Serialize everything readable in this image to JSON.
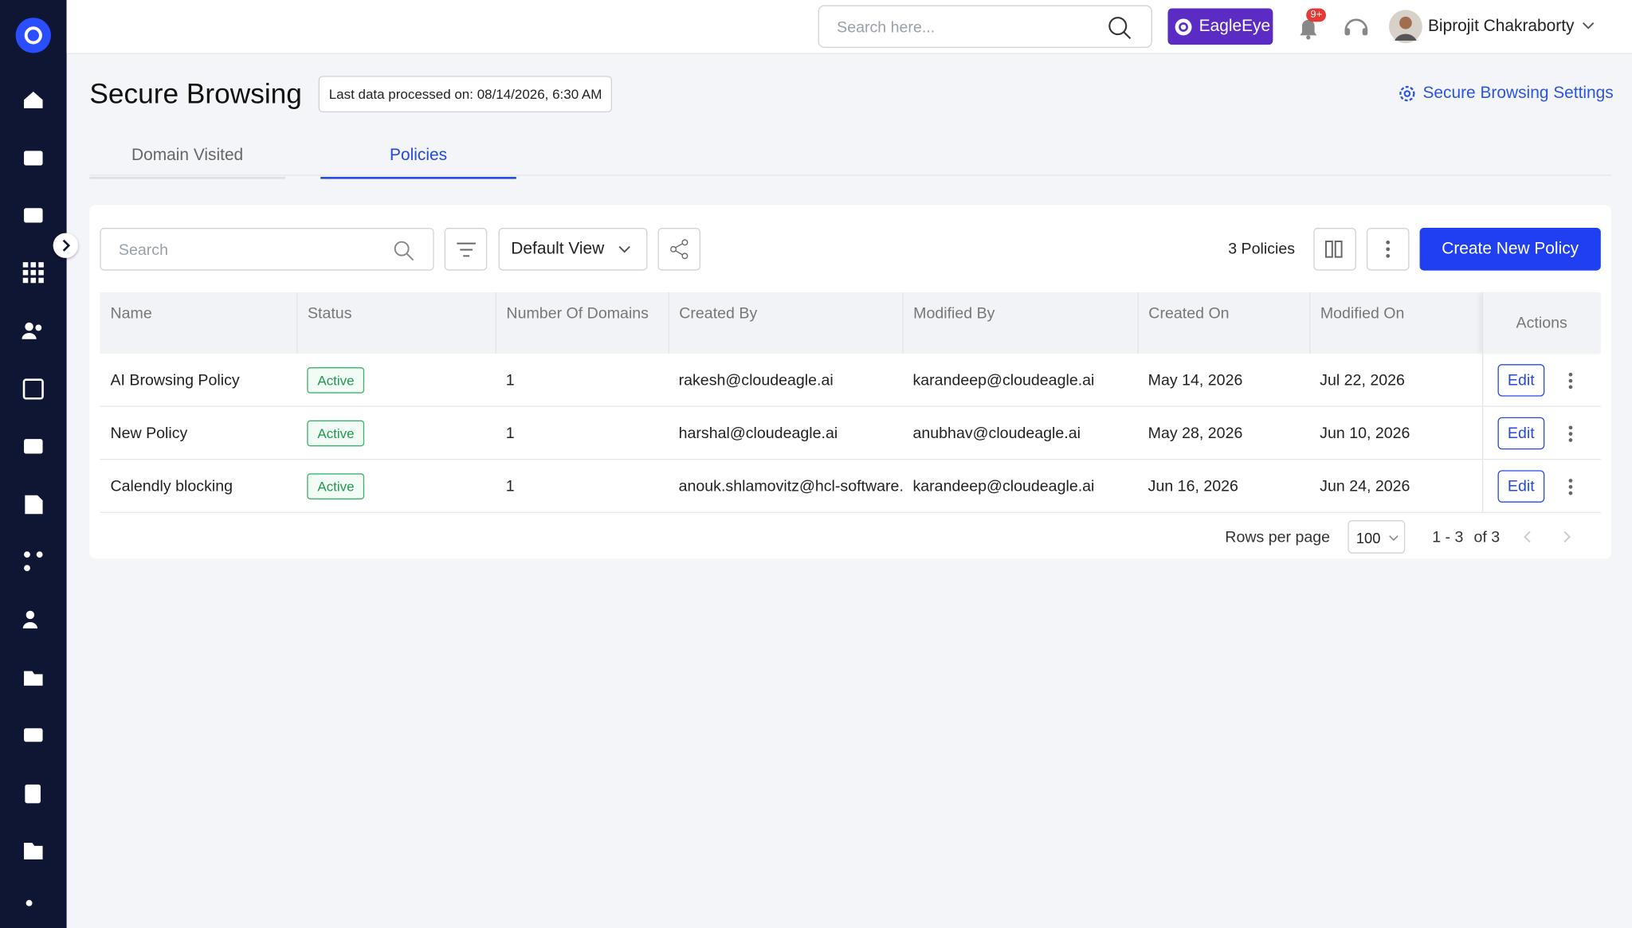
{
  "header": {
    "search_placeholder": "Search here...",
    "brand": "EagleEye",
    "notifications": "9+",
    "user": "Biprojit Chakraborty"
  },
  "page": {
    "title": "Secure Browsing",
    "last_processed": "Last data processed on: 08/14/2026, 6:30 AM",
    "settings": "Secure Browsing Settings"
  },
  "tabs": [
    "Domain Visited",
    "Policies"
  ],
  "toolbar": {
    "search_placeholder": "Search",
    "view": "Default View",
    "count": "3 Policies",
    "create": "Create New Policy"
  },
  "table": {
    "columns": [
      "Name",
      "Status",
      "Number Of Domains",
      "Created By",
      "Modified By",
      "Created On",
      "Modified On",
      "Actions"
    ],
    "rows": [
      [
        "AI Browsing Policy",
        "Active",
        1,
        "rakesh@cloudeagle.ai",
        "karandeep@cloudeagle.ai",
        "May 14, 2026",
        "Jul 22, 2026",
        "Edit"
      ],
      [
        "New Policy",
        "Active",
        1,
        "harshal@cloudeagle.ai",
        "anubhav@cloudeagle.ai",
        "May 28, 2026",
        "Jun 10, 2026",
        "Edit"
      ],
      [
        "Calendly blocking",
        "Active",
        1,
        "anouk.shlamovitz@hcl-software.com",
        "karandeep@cloudeagle.ai",
        "Jun 16, 2026",
        "Jun 24, 2026",
        "Edit"
      ]
    ]
  },
  "pagination": {
    "label": "Rows per page",
    "rows_per_page": 100,
    "range": "1 - 3",
    "total": "of 3"
  }
}
